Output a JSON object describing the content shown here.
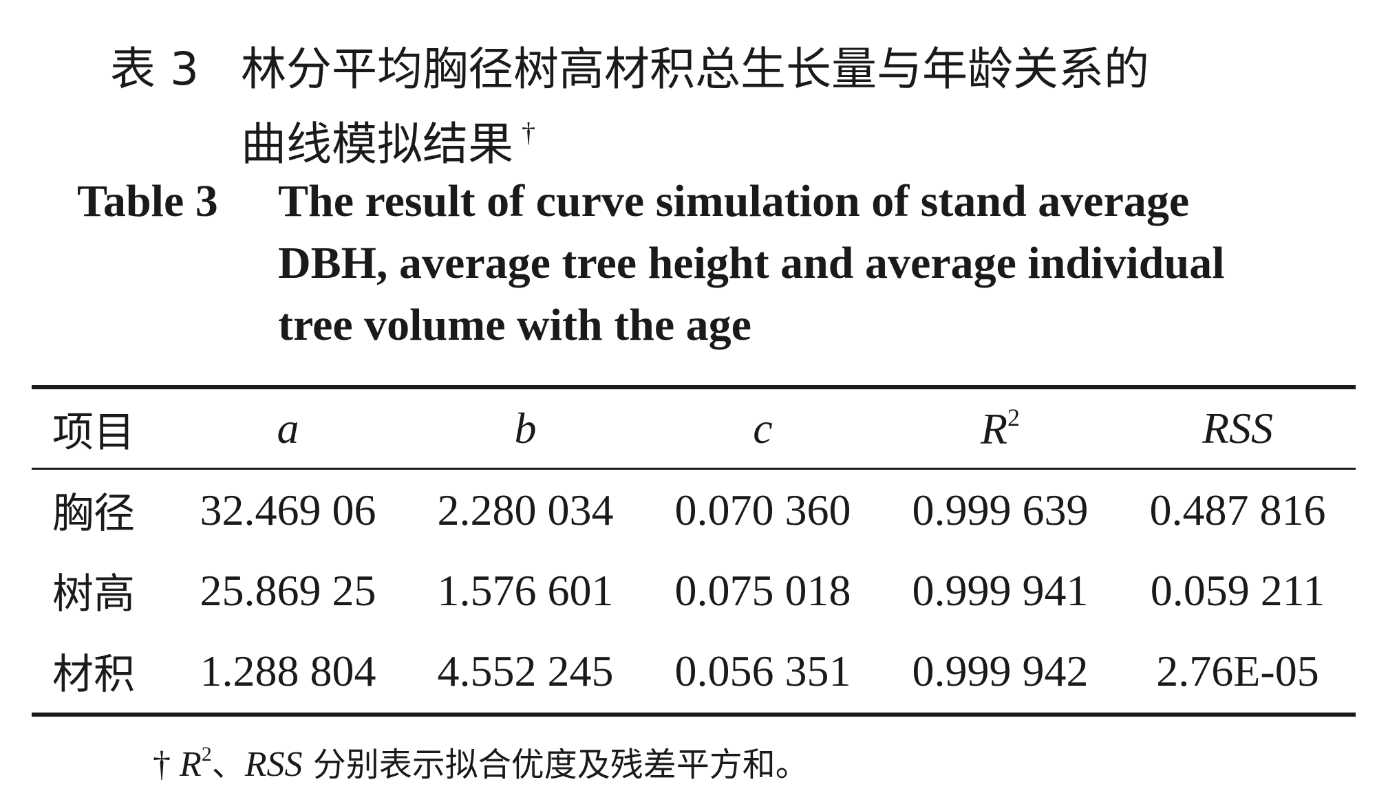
{
  "title_cn": {
    "label": "表 3",
    "line1": "林分平均胸径树高材积总生长量与年龄关系的",
    "line2": "曲线模拟结果",
    "dagger": "†"
  },
  "title_en": {
    "label": "Table 3",
    "line1": "The result of curve simulation of stand average",
    "line2": "DBH, average tree height and average individual",
    "line3": "tree volume with the age"
  },
  "table": {
    "headers": [
      "项目",
      "a",
      "b",
      "c",
      "R",
      "RSS"
    ],
    "header_r_superscript": "2",
    "rows": [
      {
        "item": "胸径",
        "a": "32.469 06",
        "b": "2.280 034",
        "c": "0.070 360",
        "r2": "0.999 639",
        "rss": "0.487 816"
      },
      {
        "item": "树高",
        "a": "25.869 25",
        "b": "1.576 601",
        "c": "0.075 018",
        "r2": "0.999 941",
        "rss": "0.059 211"
      },
      {
        "item": "材积",
        "a": "1.288 804",
        "b": "4.552 245",
        "c": "0.056 351",
        "r2": "0.999 942",
        "rss": "2.76E-05"
      }
    ]
  },
  "footnote": {
    "dagger": "†",
    "r": "R",
    "sup": "2",
    "sep": "、",
    "rss": "RSS",
    "text": " 分别表示拟合优度及残差平方和。"
  }
}
